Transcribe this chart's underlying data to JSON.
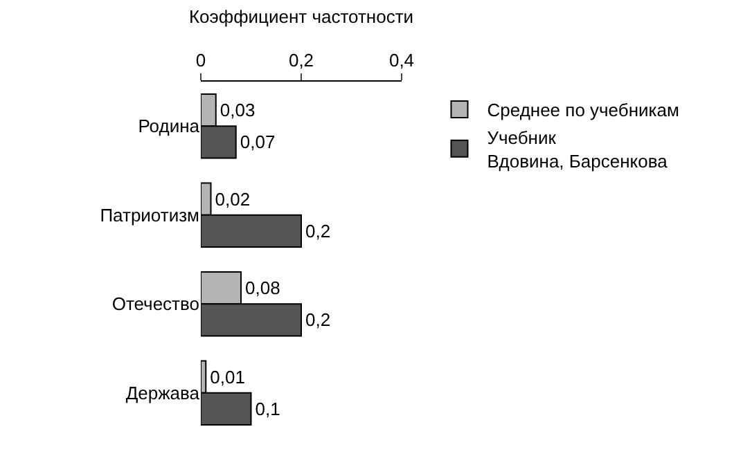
{
  "chart_data": {
    "type": "bar",
    "orientation": "horizontal",
    "xlabel": "Коэффициент частотности",
    "categories": [
      "Родина",
      "Патриотизм",
      "Отечество",
      "Держава"
    ],
    "series": [
      {
        "name": "Среднее по учебникам",
        "color": "#b4b4b4",
        "values": [
          0.03,
          0.02,
          0.08,
          0.01
        ],
        "value_labels": [
          "0,03",
          "0,02",
          "0,08",
          "0,01"
        ]
      },
      {
        "name": "Учебник\nВдовина, Барсенкова",
        "color": "#555555",
        "values": [
          0.07,
          0.2,
          0.2,
          0.1
        ],
        "value_labels": [
          "0,07",
          "0,2",
          "0,2",
          "0,1"
        ]
      }
    ],
    "xlim": [
      0,
      0.4
    ],
    "xticks": [
      0,
      {
        "value": 0.2,
        "label": "0,2"
      },
      {
        "value": 0.4,
        "label": "0,4"
      }
    ],
    "legend": "right"
  }
}
